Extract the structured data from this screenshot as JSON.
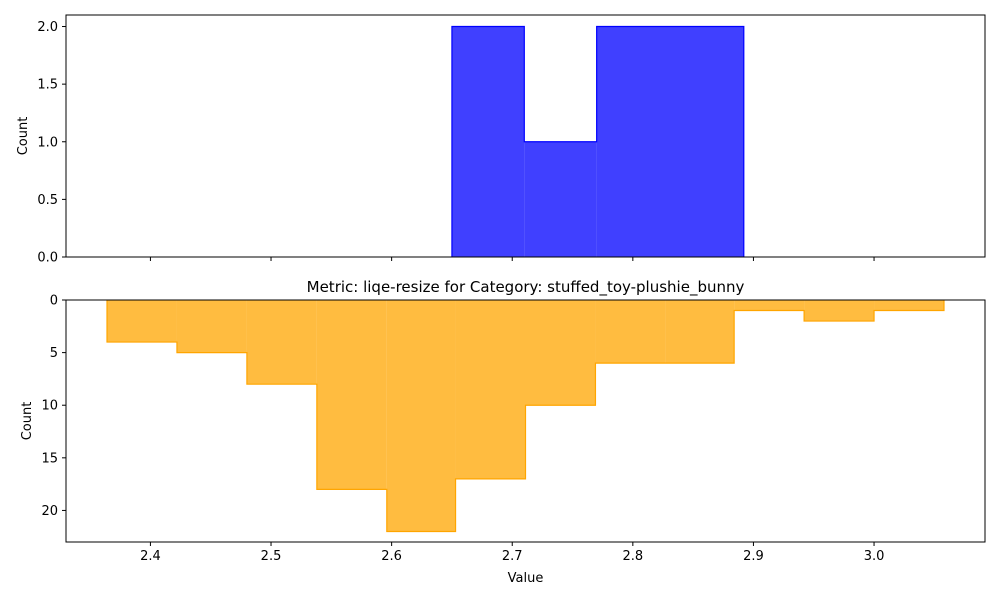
{
  "chart_data": [
    {
      "type": "histogram-step",
      "title": "",
      "xlabel": "",
      "ylabel": "Count",
      "ylim": [
        0,
        2.1
      ],
      "yticks": [
        "0.0",
        "0.5",
        "1.0",
        "1.5",
        "2.0"
      ],
      "ytick_values": [
        0,
        0.5,
        1.0,
        1.5,
        2.0
      ],
      "inverted_y": false,
      "show_xtick_labels": false,
      "color": "#0000ff",
      "fill_alpha": 0.75,
      "bins": [
        {
          "x0": 2.65,
          "x1": 2.71,
          "value": 2
        },
        {
          "x0": 2.71,
          "x1": 2.77,
          "value": 1
        },
        {
          "x0": 2.77,
          "x1": 2.892,
          "value": 2
        }
      ]
    },
    {
      "type": "histogram-step",
      "title": "Metric: liqe-resize for Category: stuffed_toy-plushie_bunny",
      "xlabel": "Value",
      "ylabel": "Count",
      "ylim": [
        23,
        0
      ],
      "yticks": [
        "0",
        "5",
        "10",
        "15",
        "20"
      ],
      "ytick_values": [
        0,
        5,
        10,
        15,
        20
      ],
      "inverted_y": true,
      "show_xtick_labels": true,
      "color": "#ffa500",
      "fill_alpha": 0.75,
      "bins": [
        {
          "x0": 2.364,
          "x1": 2.422,
          "value": 4
        },
        {
          "x0": 2.422,
          "x1": 2.48,
          "value": 5
        },
        {
          "x0": 2.48,
          "x1": 2.538,
          "value": 8
        },
        {
          "x0": 2.538,
          "x1": 2.596,
          "value": 18
        },
        {
          "x0": 2.596,
          "x1": 2.653,
          "value": 22
        },
        {
          "x0": 2.653,
          "x1": 2.711,
          "value": 17
        },
        {
          "x0": 2.711,
          "x1": 2.769,
          "value": 10
        },
        {
          "x0": 2.769,
          "x1": 2.827,
          "value": 6
        },
        {
          "x0": 2.827,
          "x1": 2.884,
          "value": 6
        },
        {
          "x0": 2.884,
          "x1": 2.942,
          "value": 1
        },
        {
          "x0": 2.942,
          "x1": 3.0,
          "value": 2
        },
        {
          "x0": 3.0,
          "x1": 3.058,
          "value": 1
        }
      ]
    }
  ],
  "shared_x": {
    "xlim": [
      2.33,
      3.092
    ],
    "xticks": [
      "2.4",
      "2.5",
      "2.6",
      "2.7",
      "2.8",
      "2.9",
      "3.0"
    ],
    "xtick_values": [
      2.4,
      2.5,
      2.6,
      2.7,
      2.8,
      2.9,
      3.0
    ]
  }
}
